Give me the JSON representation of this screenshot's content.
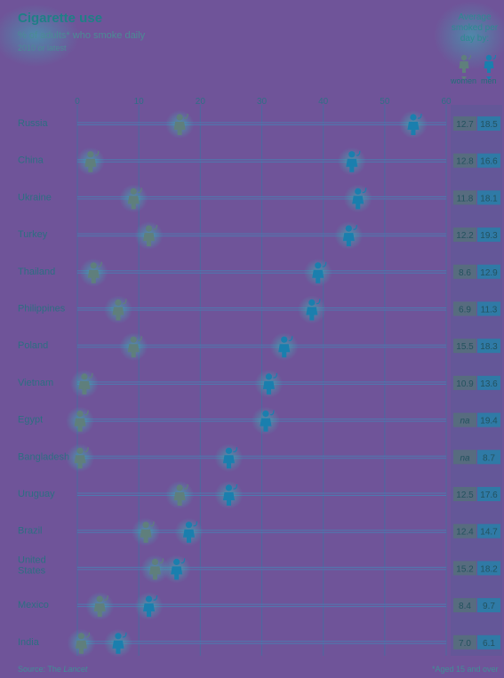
{
  "header": {
    "title": "Cigarette use",
    "subtitle": "% of adults* who smoke daily",
    "note": "2010 or latest"
  },
  "averages_header": "Average smoked per day by:",
  "legend": {
    "women": "women",
    "men": "men"
  },
  "source": {
    "prefix": "Source: The ",
    "name": "Lancet"
  },
  "footnote": "*Aged 15 and over",
  "colors": {
    "women": "#5f7f7c",
    "men": "#1a7fae",
    "background": "#6f5499",
    "accent": "#1f7f86"
  },
  "chart_data": {
    "type": "scatter",
    "title": "Cigarette use",
    "xlim": [
      0,
      60
    ],
    "xticks": [
      "0",
      "10",
      "20",
      "30",
      "40",
      "50",
      "60"
    ],
    "categories": [
      "Russia",
      "China",
      "Ukraine",
      "Turkey",
      "Thailand",
      "Philippines",
      "Poland",
      "Vietnam",
      "Egypt",
      "Bangladesh",
      "Uruguay",
      "Brazil",
      "United States",
      "Mexico",
      "India"
    ],
    "series": [
      {
        "name": "women",
        "values": [
          16.5,
          2,
          9,
          11.5,
          2.5,
          6.5,
          9,
          1,
          0.3,
          0.3,
          16.5,
          11,
          12.5,
          3.5,
          0.5
        ]
      },
      {
        "name": "men",
        "values": [
          54.5,
          44.5,
          45.5,
          44,
          39,
          38,
          33.5,
          31,
          30.5,
          24.5,
          24.5,
          18,
          16,
          11.5,
          6.5
        ]
      }
    ],
    "avg_per_day": {
      "women": [
        "12.7",
        "12.8",
        "11.8",
        "12.2",
        "8.6",
        "6.9",
        "15.5",
        "10.9",
        "na",
        "na",
        "12.5",
        "12.4",
        "15.2",
        "8.4",
        "7.0"
      ],
      "men": [
        "18.5",
        "16.6",
        "18.1",
        "19.3",
        "12.9",
        "11.3",
        "18.3",
        "13.6",
        "19.4",
        "8.7",
        "17.6",
        "14.7",
        "18.2",
        "9.7",
        "6.1"
      ]
    }
  }
}
